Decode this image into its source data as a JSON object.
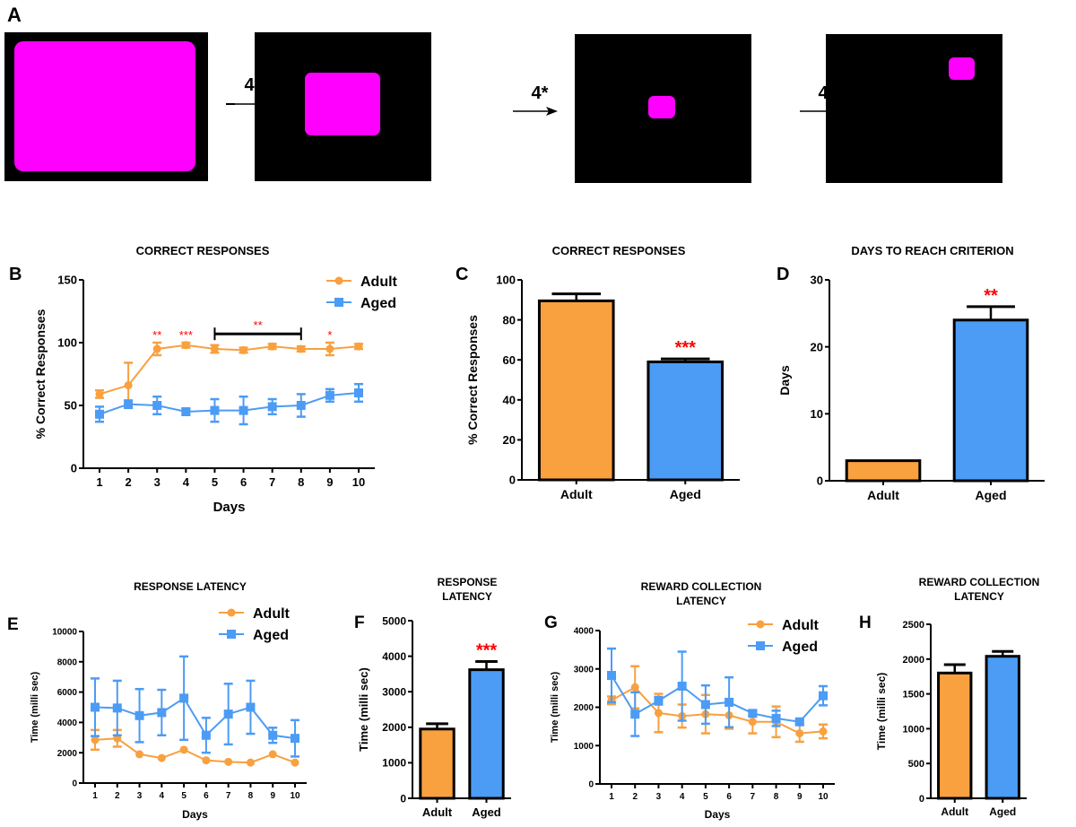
{
  "figure": {
    "colors": {
      "adult": "#F9A03F",
      "aged": "#4C9BF5",
      "significance": "#FF0000",
      "axis": "#000000",
      "stimulus_bg": "#000000",
      "stimulus_fg": "#FF00FF"
    }
  },
  "panel_a": {
    "label": "A",
    "arrow_label": "4*",
    "stages": [
      {
        "name": "full-screen",
        "description": "large centered stimulus"
      },
      {
        "name": "medium",
        "description": "medium centered stimulus"
      },
      {
        "name": "small",
        "description": "small centered stimulus"
      },
      {
        "name": "small-displaced",
        "description": "small stimulus top-right"
      }
    ]
  },
  "chart_data": [
    {
      "panel": "B",
      "type": "line",
      "title": "CORRECT RESPONSES",
      "xlabel": "Days",
      "ylabel": "% Correct Responses",
      "x": [
        1,
        2,
        3,
        4,
        5,
        6,
        7,
        8,
        9,
        10
      ],
      "ylim": [
        0,
        150
      ],
      "yticks": [
        0,
        50,
        100,
        150
      ],
      "legend": "top-right",
      "series": [
        {
          "name": "Adult",
          "marker": "circle",
          "values": [
            59,
            66,
            95,
            98,
            95,
            94,
            97,
            95,
            95,
            97
          ],
          "errors": [
            3,
            18,
            5,
            2,
            3,
            2,
            2,
            2,
            5,
            2
          ]
        },
        {
          "name": "Aged",
          "marker": "square",
          "values": [
            43,
            51,
            50,
            45,
            46,
            46,
            49,
            50,
            58,
            60
          ],
          "errors": [
            6,
            3,
            7,
            2,
            9,
            11,
            6,
            9,
            5,
            7
          ]
        }
      ],
      "annotations": [
        {
          "x": 3,
          "text": "**"
        },
        {
          "x": 4,
          "text": "***"
        },
        {
          "x_from": 5,
          "x_to": 8,
          "text": "**",
          "bracket": true
        },
        {
          "x": 9,
          "text": "*"
        }
      ]
    },
    {
      "panel": "C",
      "type": "bar",
      "title": "CORRECT RESPONSES",
      "xlabel": "",
      "ylabel": "% Correct Responses",
      "categories": [
        "Adult",
        "Aged"
      ],
      "values": [
        89.5,
        59
      ],
      "errors": [
        3.5,
        1.5
      ],
      "ylim": [
        0,
        100
      ],
      "yticks": [
        0,
        20,
        40,
        60,
        80,
        100
      ],
      "annotations": [
        {
          "category": "Aged",
          "text": "***"
        }
      ]
    },
    {
      "panel": "D",
      "type": "bar",
      "title": "DAYS TO REACH CRITERION",
      "xlabel": "",
      "ylabel": "Days",
      "categories": [
        "Adult",
        "Aged"
      ],
      "values": [
        3,
        24
      ],
      "errors": [
        0,
        2
      ],
      "ylim": [
        0,
        30
      ],
      "yticks": [
        0,
        10,
        20,
        30
      ],
      "annotations": [
        {
          "category": "Aged",
          "text": "**"
        }
      ]
    },
    {
      "panel": "E",
      "type": "line",
      "title": "RESPONSE LATENCY",
      "xlabel": "Days",
      "ylabel": "Time (milli sec)",
      "x": [
        1,
        2,
        3,
        4,
        5,
        6,
        7,
        8,
        9,
        10
      ],
      "ylim": [
        0,
        10000
      ],
      "yticks": [
        0,
        2000,
        4000,
        6000,
        8000,
        10000
      ],
      "legend": "top-right",
      "series": [
        {
          "name": "Adult",
          "marker": "circle",
          "values": [
            2850,
            2950,
            1900,
            1650,
            2200,
            1500,
            1400,
            1350,
            1900,
            1350
          ],
          "errors": [
            650,
            550,
            0,
            0,
            0,
            0,
            0,
            0,
            0,
            0
          ]
        },
        {
          "name": "Aged",
          "marker": "square",
          "values": [
            5000,
            4950,
            4450,
            4650,
            5600,
            3150,
            4550,
            5000,
            3150,
            2950
          ],
          "errors": [
            1900,
            1800,
            1750,
            1500,
            2750,
            1150,
            2000,
            1750,
            500,
            1200
          ]
        }
      ],
      "annotations": []
    },
    {
      "panel": "F",
      "type": "bar",
      "title": "RESPONSE LATENCY",
      "xlabel": "",
      "ylabel": "Time (milli sec)",
      "categories": [
        "Adult",
        "Aged"
      ],
      "values": [
        1950,
        3620
      ],
      "errors": [
        150,
        230
      ],
      "ylim": [
        0,
        5000
      ],
      "yticks": [
        0,
        1000,
        2000,
        3000,
        4000,
        5000
      ],
      "annotations": [
        {
          "category": "Aged",
          "text": "***"
        }
      ]
    },
    {
      "panel": "G",
      "type": "line",
      "title": "REWARD COLLECTION LATENCY",
      "xlabel": "Days",
      "ylabel": "Time (milli sec)",
      "x": [
        1,
        2,
        3,
        4,
        5,
        6,
        7,
        8,
        9,
        10
      ],
      "ylim": [
        0,
        4000
      ],
      "yticks": [
        0,
        1000,
        2000,
        3000,
        4000
      ],
      "legend": "top-right",
      "series": [
        {
          "name": "Adult",
          "marker": "circle",
          "values": [
            2180,
            2520,
            1850,
            1770,
            1820,
            1790,
            1620,
            1620,
            1320,
            1370
          ],
          "errors": [
            100,
            550,
            500,
            300,
            500,
            350,
            300,
            400,
            220,
            180
          ]
        },
        {
          "name": "Aged",
          "marker": "square",
          "values": [
            2830,
            1820,
            2170,
            2550,
            2070,
            2130,
            1840,
            1710,
            1620,
            2300
          ],
          "errors": [
            700,
            570,
            100,
            900,
            500,
            650,
            60,
            200,
            50,
            250
          ]
        }
      ],
      "annotations": []
    },
    {
      "panel": "H",
      "type": "bar",
      "title": "REWARD COLLECTION LATENCY",
      "xlabel": "",
      "ylabel": "Time (milli sec)",
      "categories": [
        "Adult",
        "Aged"
      ],
      "values": [
        1800,
        2040
      ],
      "errors": [
        120,
        70
      ],
      "ylim": [
        0,
        2500
      ],
      "yticks": [
        0,
        500,
        1000,
        1500,
        2000,
        2500
      ],
      "annotations": []
    }
  ]
}
